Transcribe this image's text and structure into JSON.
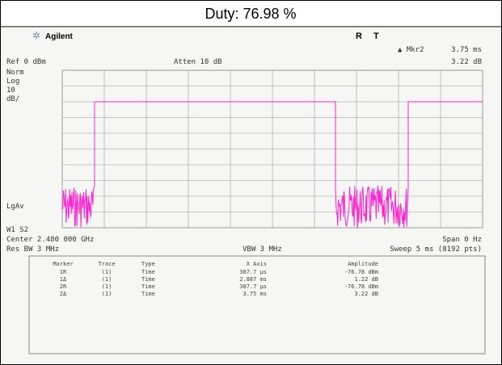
{
  "header": {
    "title": "Duty: 76.98 %"
  },
  "screen": {
    "brand": "Agilent",
    "status": [
      "R",
      "T"
    ],
    "marker_label": "▲ Mkr2",
    "marker_x": "3.75 ms",
    "marker_y": "3.22 dB",
    "ref": "Ref 0 dBm",
    "atten": "Atten 10 dB",
    "scale": [
      "Norm",
      "Log",
      "10",
      "dB/"
    ],
    "detector": "LgAv",
    "trace_mode": "W1 S2",
    "center": "Center 2.480 000 GHz",
    "span": "Span 0 Hz",
    "rbw": "Res BW 3 MHz",
    "vbw": "VBW 3 MHz",
    "sweep": "Sweep 5 ms (8192 pts)"
  },
  "table": {
    "header": [
      "Marker",
      "Trace",
      "Type",
      "X Axis",
      "Amplitude"
    ],
    "rows": [
      [
        "1R",
        "(1)",
        "Time",
        "387.7 µs",
        "-76.78 dBm"
      ],
      [
        "1Δ",
        "(1)",
        "Time",
        "2.887 ms",
        "1.22 dB"
      ],
      [
        "2R",
        "(1)",
        "Time",
        "387.7 µs",
        "-76.78 dBm"
      ],
      [
        "2Δ",
        "(1)",
        "Time",
        "3.75 ms",
        "3.22 dB"
      ]
    ]
  }
}
